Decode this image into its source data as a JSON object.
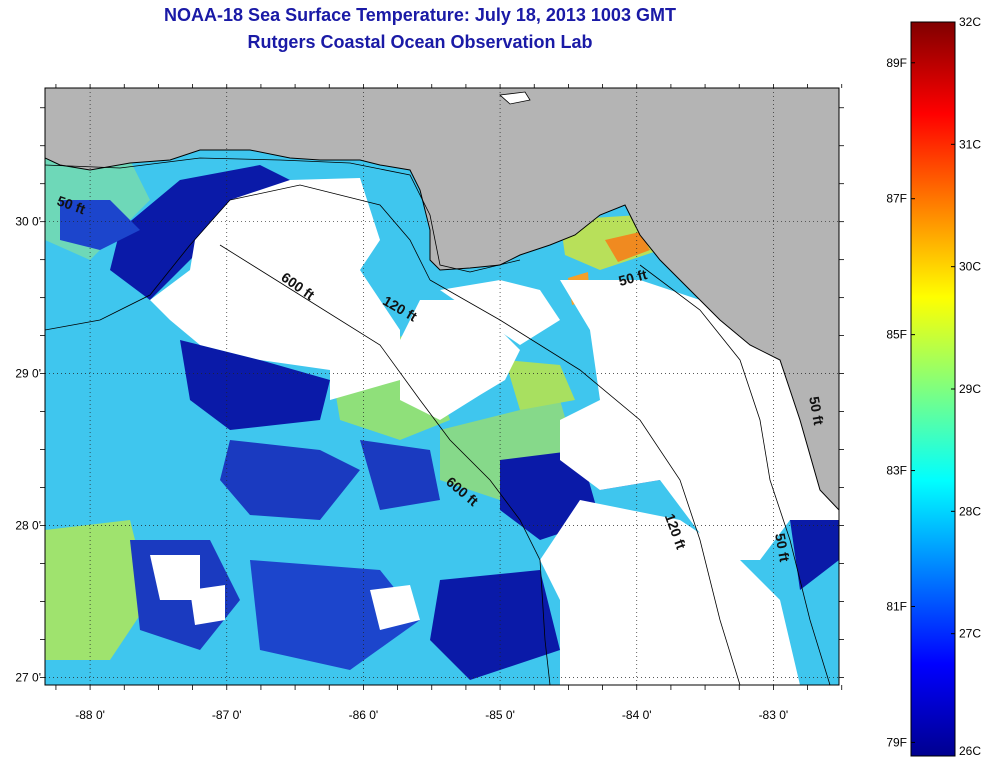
{
  "title": "NOAA-18 Sea Surface Temperature:  July 18, 2013 1003 GMT",
  "subtitle": "Rutgers Coastal Ocean Observation Lab",
  "map": {
    "lon_range": [
      -88.33,
      -82.52
    ],
    "lat_range": [
      26.95,
      30.88
    ],
    "grid": "dotted",
    "lon_ticks": [
      "-88 0'",
      "-87 0'",
      "-86 0'",
      "-85 0'",
      "-84 0'",
      "-83 0'"
    ],
    "lat_ticks": [
      "30 0'",
      "29 0'",
      "28 0'",
      "27 0'"
    ],
    "land_color": "#b4b4b4",
    "cloud_color": "#ffffff",
    "contour_labels": [
      {
        "text": "50 ft",
        "lon": -88.15,
        "lat": 30.08,
        "rotate": 20
      },
      {
        "text": "600 ft",
        "lon": -86.5,
        "lat": 29.55,
        "rotate": 35
      },
      {
        "text": "120 ft",
        "lon": -85.75,
        "lat": 29.4,
        "rotate": 30
      },
      {
        "text": "50 ft",
        "lon": -84.02,
        "lat": 29.6,
        "rotate": -15
      },
      {
        "text": "600 ft",
        "lon": -85.3,
        "lat": 28.2,
        "rotate": 40
      },
      {
        "text": "120 ft",
        "lon": -83.75,
        "lat": 27.95,
        "rotate": 70
      },
      {
        "text": "50 ft",
        "lon": -82.97,
        "lat": 27.85,
        "rotate": 80
      },
      {
        "text": "50 ft",
        "lon": -82.72,
        "lat": 28.75,
        "rotate": 80
      }
    ]
  },
  "colorbar": {
    "celsius_labels": [
      "32C",
      "31C",
      "30C",
      "29C",
      "28C",
      "27C",
      "26C"
    ],
    "celsius_values": [
      32,
      31,
      30,
      29,
      28,
      27,
      26
    ],
    "fahrenheit_labels": [
      "89F",
      "87F",
      "85F",
      "83F",
      "81F",
      "79F"
    ],
    "fahrenheit_values": [
      89,
      87,
      85,
      83,
      81,
      79
    ],
    "range_c": [
      26,
      32
    ],
    "colors": [
      "#00008f",
      "#0000ff",
      "#007fff",
      "#00ffff",
      "#7fff7f",
      "#ffff00",
      "#ff7f00",
      "#ff0000",
      "#800000"
    ]
  }
}
